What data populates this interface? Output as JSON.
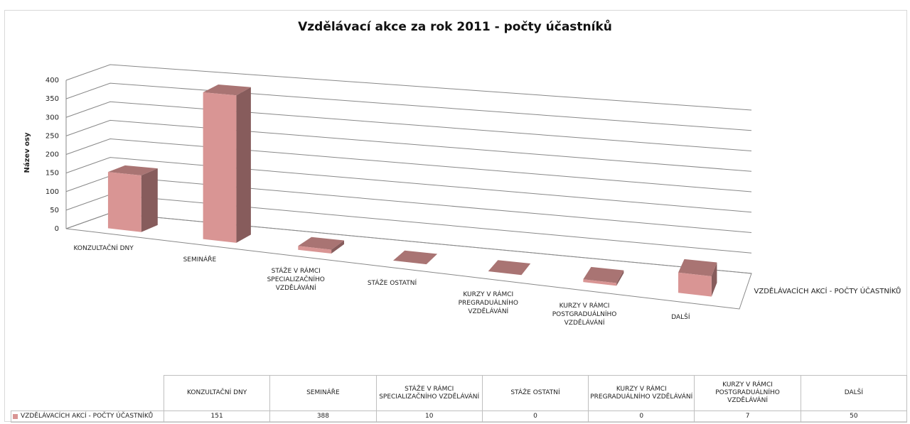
{
  "chart_data": {
    "type": "bar3d",
    "title": "Vzdělávací akce za rok 2011 - počty účastníků",
    "y_axis_label": "Název osy",
    "categories": [
      "KONZULTAČNÍ DNY",
      "SEMINÁŘE",
      "STÁŽE V RÁMCI SPECIALIZAČNÍHO VZDĚLÁVÁNÍ",
      "STÁŽE OSTATNÍ",
      "KURZY V RÁMCI PREGRADUÁLNÍHO VZDĚLÁVÁNÍ",
      "KURZY V RÁMCI POSTGRADUÁLNÍHO VZDĚLÁVÁNÍ",
      "DALŠÍ"
    ],
    "series": [
      {
        "name": "VZDĚLÁVACÍCH AKCÍ - POČTY ÚČASTNÍKŮ",
        "color": "#d99594",
        "values": [
          151,
          388,
          10,
          0,
          0,
          7,
          50
        ]
      }
    ],
    "ylim": [
      0,
      400
    ],
    "yticks": [
      0,
      50,
      100,
      150,
      200,
      250,
      300,
      350,
      400
    ],
    "grid": true
  }
}
